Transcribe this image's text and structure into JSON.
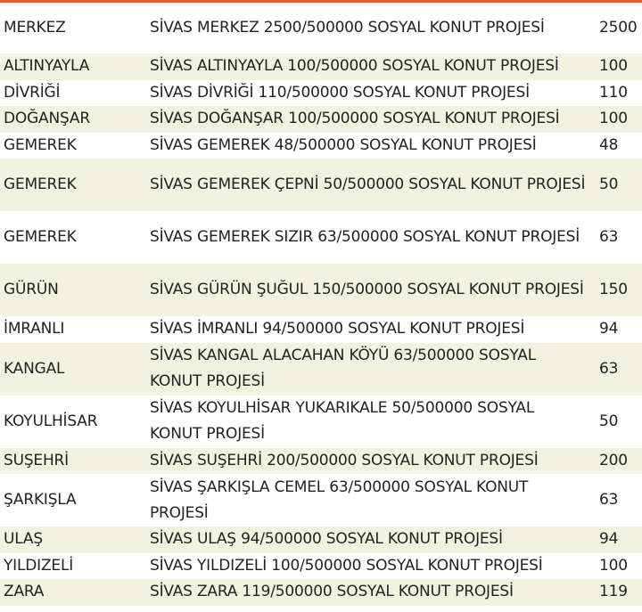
{
  "accent_color": "#e4612b",
  "row_alt_color": "#f1f3e0",
  "rows": [
    {
      "district": "MERKEZ",
      "project": "SİVAS MERKEZ 2500/500000 SOSYAL KONUT PROJESİ",
      "count": "2500"
    },
    {
      "district": "ALTINYAYLA",
      "project": "SİVAS ALTINYAYLA 100/500000 SOSYAL KONUT PROJESİ",
      "count": "100"
    },
    {
      "district": "DİVRİĞİ",
      "project": "SİVAS DİVRİĞİ 110/500000 SOSYAL KONUT PROJESİ",
      "count": "110"
    },
    {
      "district": "DOĞANŞAR",
      "project": "SİVAS DOĞANŞAR 100/500000 SOSYAL KONUT PROJESİ",
      "count": "100"
    },
    {
      "district": "GEMEREK",
      "project": "SİVAS GEMEREK 48/500000 SOSYAL KONUT PROJESİ",
      "count": "48"
    },
    {
      "district": "GEMEREK",
      "project": "SİVAS GEMEREK ÇEPNİ 50/500000 SOSYAL KONUT PROJESİ",
      "count": "50"
    },
    {
      "district": "GEMEREK",
      "project": "SİVAS GEMEREK SIZIR 63/500000 SOSYAL KONUT PROJESİ",
      "count": "63"
    },
    {
      "district": "GÜRÜN",
      "project": "SİVAS GÜRÜN ŞUĞUL 150/500000 SOSYAL KONUT PROJESİ",
      "count": "150"
    },
    {
      "district": "İMRANLI",
      "project": "SİVAS İMRANLI 94/500000 SOSYAL KONUT PROJESİ",
      "count": "94"
    },
    {
      "district": "KANGAL",
      "project": "SİVAS KANGAL ALACAHAN KÖYÜ 63/500000 SOSYAL KONUT PROJESİ",
      "count": "63"
    },
    {
      "district": "KOYULHİSAR",
      "project": "SİVAS KOYULHİSAR YUKARIKALE 50/500000 SOSYAL KONUT PROJESİ",
      "count": "50"
    },
    {
      "district": "SUŞEHRİ",
      "project": "SİVAS SUŞEHRİ 200/500000 SOSYAL KONUT PROJESİ",
      "count": "200"
    },
    {
      "district": "ŞARKIŞLA",
      "project": "SİVAS ŞARKIŞLA CEMEL 63/500000 SOSYAL KONUT PROJESİ",
      "count": "63"
    },
    {
      "district": "ULAŞ",
      "project": "SİVAS ULAŞ 94/500000 SOSYAL KONUT PROJESİ",
      "count": "94"
    },
    {
      "district": "YILDIZELİ",
      "project": "SİVAS YILDIZELİ 100/500000 SOSYAL KONUT PROJESİ",
      "count": "100"
    },
    {
      "district": "ZARA",
      "project": "SİVAS ZARA 119/500000 SOSYAL KONUT PROJESİ",
      "count": "119"
    }
  ]
}
